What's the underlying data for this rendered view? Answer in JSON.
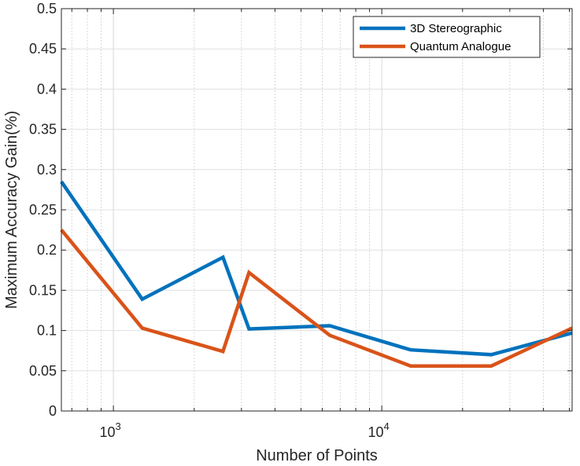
{
  "chart_data": {
    "type": "line",
    "xlabel": "Number of Points",
    "ylabel": "Maximum Accuracy Gain(%)",
    "xscale": "log",
    "xlim": [
      640,
      51200
    ],
    "ylim": [
      0,
      0.5
    ],
    "grid": true,
    "legend_position": "top-right",
    "x_ticks": [
      {
        "value": 1000,
        "base": "10",
        "exp": "3"
      },
      {
        "value": 10000,
        "base": "10",
        "exp": "4"
      }
    ],
    "y_ticks": [
      {
        "value": 0,
        "label": "0"
      },
      {
        "value": 0.05,
        "label": "0.05"
      },
      {
        "value": 0.1,
        "label": "0.1"
      },
      {
        "value": 0.15,
        "label": "0.15"
      },
      {
        "value": 0.2,
        "label": "0.2"
      },
      {
        "value": 0.25,
        "label": "0.25"
      },
      {
        "value": 0.3,
        "label": "0.3"
      },
      {
        "value": 0.35,
        "label": "0.35"
      },
      {
        "value": 0.4,
        "label": "0.4"
      },
      {
        "value": 0.45,
        "label": "0.45"
      },
      {
        "value": 0.5,
        "label": "0.5"
      }
    ],
    "series": [
      {
        "name": "3D Stereographic",
        "color": "#0072BD",
        "x": [
          640,
          1280,
          2560,
          3200,
          6400,
          12800,
          25600,
          51200
        ],
        "y": [
          0.285,
          0.139,
          0.191,
          0.102,
          0.106,
          0.076,
          0.07,
          0.097
        ]
      },
      {
        "name": "Quantum Analogue",
        "color": "#D95319",
        "x": [
          640,
          1280,
          2560,
          3200,
          6400,
          12800,
          25600,
          51200
        ],
        "y": [
          0.225,
          0.103,
          0.074,
          0.172,
          0.094,
          0.056,
          0.056,
          0.103
        ]
      }
    ]
  }
}
